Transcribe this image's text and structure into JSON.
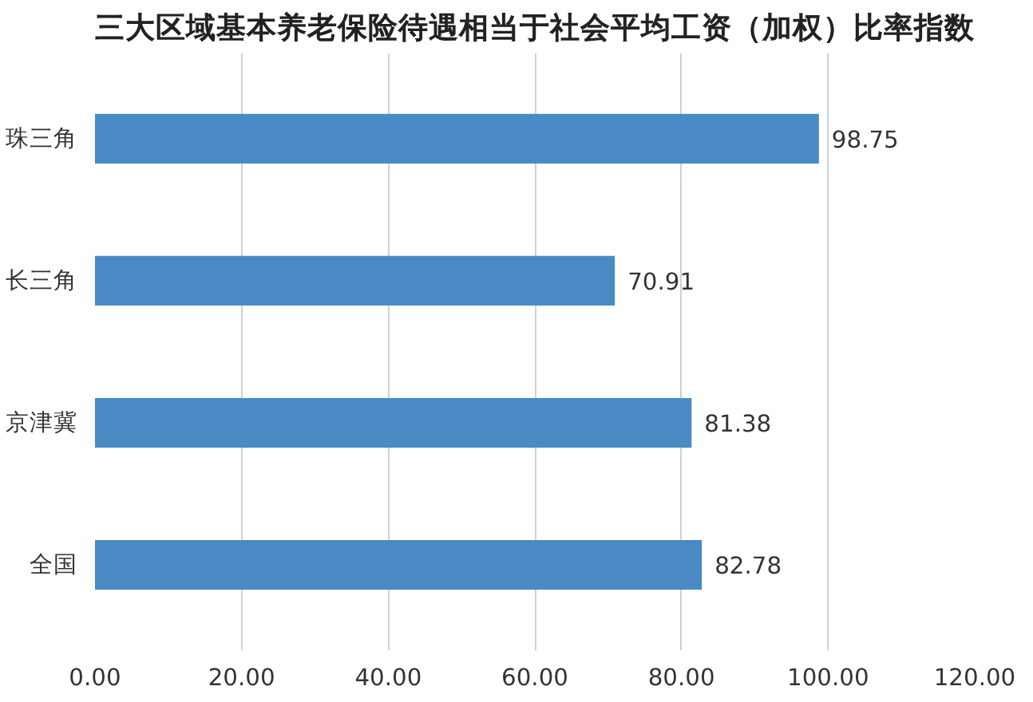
{
  "chart_data": {
    "type": "bar",
    "orientation": "horizontal",
    "title": "三大区域基本养老保险待遇相当于社会平均工资（加权）比率指数",
    "categories": [
      "珠三角",
      "长三角",
      "京津冀",
      "全国"
    ],
    "values": [
      98.75,
      70.91,
      81.38,
      82.78
    ],
    "color": "#4a8ac4",
    "xlim": [
      0,
      120
    ],
    "xticks": [
      {
        "value": 0,
        "label": "0.00"
      },
      {
        "value": 20,
        "label": "20.00"
      },
      {
        "value": 40,
        "label": "40.00"
      },
      {
        "value": 60,
        "label": "60.00"
      },
      {
        "value": 80,
        "label": "80.00"
      },
      {
        "value": 100,
        "label": "100.00"
      },
      {
        "value": 120,
        "label": "120.00"
      }
    ],
    "grid": "x",
    "data_labels": true
  }
}
